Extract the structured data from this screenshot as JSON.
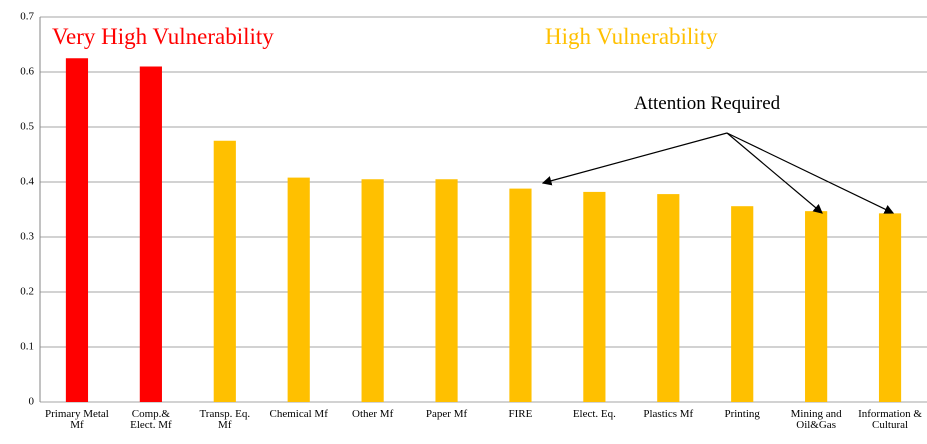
{
  "chart_data": {
    "type": "bar",
    "categories": [
      "Primary Metal Mf",
      "Comp.& Elect. Mf",
      "Transp. Eq. Mf",
      "Chemical Mf",
      "Other Mf",
      "Paper Mf",
      "FIRE",
      "Elect. Eq.",
      "Plastics Mf",
      "Printing",
      "Mining and Oil&Gas",
      "Information & Cultural"
    ],
    "values": [
      0.625,
      0.61,
      0.475,
      0.408,
      0.405,
      0.405,
      0.388,
      0.382,
      0.378,
      0.356,
      0.347,
      0.343
    ],
    "colors": [
      "#ff0000",
      "#ff0000",
      "#ffc000",
      "#ffc000",
      "#ffc000",
      "#ffc000",
      "#ffc000",
      "#ffc000",
      "#ffc000",
      "#ffc000",
      "#ffc000",
      "#ffc000"
    ],
    "ylim": [
      0,
      0.7
    ],
    "yticks": [
      0,
      0.1,
      0.2,
      0.3,
      0.4,
      0.5,
      0.6,
      0.7
    ],
    "grid": true,
    "annotations": [
      {
        "text": "Very High Vulnerability",
        "color": "#ff0000"
      },
      {
        "text": "High Vulnerability",
        "color": "#ffc000"
      },
      {
        "text": "Attention Required",
        "color": "#000000"
      }
    ]
  }
}
